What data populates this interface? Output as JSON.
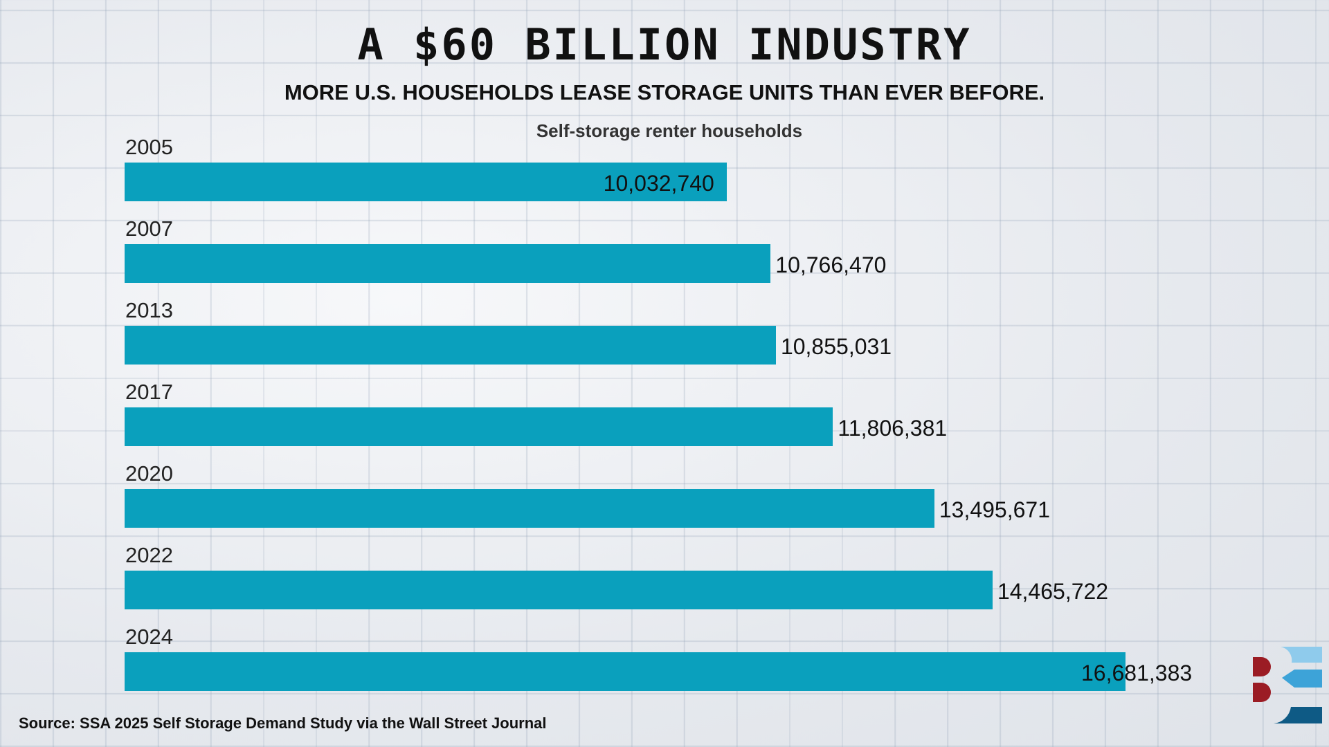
{
  "header": {
    "title": "A $60 BILLION INDUSTRY",
    "subtitle": "MORE U.S. HOUSEHOLDS LEASE STORAGE UNITS THAN EVER BEFORE."
  },
  "chart_data": {
    "type": "bar",
    "orientation": "horizontal",
    "title": "Self-storage renter households",
    "categories": [
      "2005",
      "2007",
      "2013",
      "2017",
      "2020",
      "2022",
      "2024"
    ],
    "values": [
      10032740,
      10766470,
      10855031,
      11806381,
      13495671,
      14465722,
      16681383
    ],
    "labels": [
      "10,032,740",
      "10,766,470",
      "10,855,031",
      "11,806,381",
      "13,495,671",
      "14,465,722",
      "16,681,383"
    ],
    "xlim": [
      0,
      16681383
    ],
    "grid": false,
    "bar_color": "#0aa0bd"
  },
  "footer": {
    "source": "Source: SSA 2025 Self Storage Demand Study via the Wall Street Journal"
  },
  "logo": {
    "name": "be-logo",
    "colors": [
      "#9b1c24",
      "#8fcbec",
      "#3da3d8",
      "#0e5a85"
    ]
  }
}
